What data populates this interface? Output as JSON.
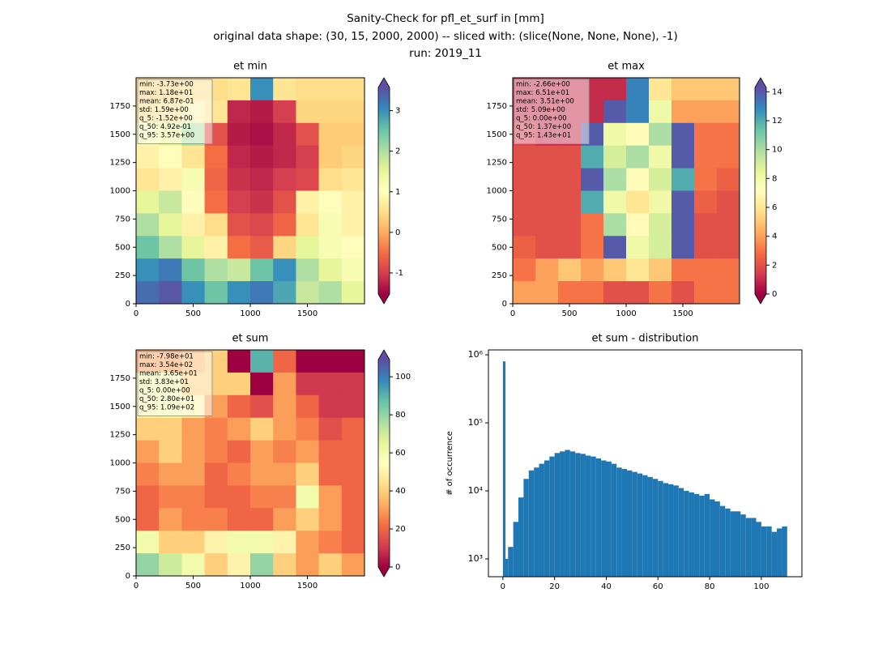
{
  "title": [
    "Sanity-Check for pfl_et_surf in [mm]",
    "original data shape: (30, 15, 2000, 2000) -- sliced with: (slice(None, None, None), -1)",
    "run: 2019_11"
  ],
  "chart_data": [
    {
      "type": "heatmap",
      "title": "et min",
      "xlim": [
        0,
        2000
      ],
      "ylim": [
        0,
        2000
      ],
      "xticks": [
        0,
        500,
        1000,
        1500
      ],
      "yticks": [
        0,
        250,
        500,
        750,
        1000,
        1250,
        1500,
        1750
      ],
      "clim": [
        -1.52,
        3.57
      ],
      "cticks": [
        -1,
        0,
        1,
        2,
        3
      ],
      "colormap": [
        "#9e0142",
        "#d53e4f",
        "#f46d43",
        "#fdae61",
        "#fee08b",
        "#ffffbf",
        "#e6f598",
        "#abdda4",
        "#66c2a5",
        "#3288bd",
        "#5e4fa2"
      ],
      "stats": [
        "min: -3.73e+00",
        "max: 1.18e+01",
        "mean: 6.87e-01",
        "std: 1.59e+00",
        "q_5: -1.52e+00",
        "q_50: 4.92e-01",
        "q_95: 3.57e+00"
      ],
      "z": [
        [
          0.4,
          0.4,
          0.5,
          0.5,
          0.6,
          3,
          0.6,
          0.5,
          0.5,
          0.5
        ],
        [
          0.5,
          0.6,
          0.8,
          0.6,
          -1.2,
          -1.3,
          -1.0,
          0.4,
          0.4,
          0.4
        ],
        [
          1.2,
          1.5,
          2.0,
          -0.8,
          -1.3,
          -1.4,
          -1.2,
          -0.8,
          0.3,
          0.3
        ],
        [
          0.8,
          1.0,
          0.6,
          -0.5,
          -1.2,
          -1.3,
          -1.2,
          -1.0,
          0.3,
          0.4
        ],
        [
          0.6,
          0.8,
          1.2,
          -0.6,
          -1.1,
          -1.2,
          -1.0,
          -0.9,
          0.5,
          0.6
        ],
        [
          1.5,
          1.8,
          1.0,
          -0.5,
          -1.0,
          -1.1,
          -0.8,
          0.8,
          1.0,
          0.8
        ],
        [
          2.0,
          1.5,
          0.8,
          0.5,
          -0.8,
          -0.9,
          -0.6,
          0.6,
          1.2,
          0.8
        ],
        [
          2.5,
          2.0,
          1.5,
          0.8,
          -0.5,
          -0.7,
          0.4,
          1.5,
          1.2,
          1.0
        ],
        [
          3.0,
          3.2,
          2.5,
          2.0,
          1.8,
          2.5,
          3.0,
          2.0,
          1.5,
          1.2
        ],
        [
          3.3,
          3.5,
          3.0,
          2.5,
          3.0,
          3.2,
          2.8,
          1.8,
          2.0,
          1.5
        ]
      ]
    },
    {
      "type": "heatmap",
      "title": "et max",
      "xlim": [
        0,
        2000
      ],
      "ylim": [
        0,
        2000
      ],
      "xticks": [
        0,
        500,
        1000,
        1500
      ],
      "yticks": [
        0,
        250,
        500,
        750,
        1000,
        1250,
        1500,
        1750
      ],
      "clim": [
        0,
        14.3
      ],
      "cticks": [
        0,
        2,
        4,
        6,
        8,
        10,
        12,
        14
      ],
      "colormap": [
        "#9e0142",
        "#d53e4f",
        "#f46d43",
        "#fdae61",
        "#fee08b",
        "#ffffbf",
        "#e6f598",
        "#abdda4",
        "#66c2a5",
        "#3288bd",
        "#5e4fa2"
      ],
      "stats": [
        "min: -2.66e+00",
        "max: 6.51e+01",
        "mean: 3.51e+00",
        "std: 5.09e+00",
        "q_5: 0.00e+00",
        "q_50: 1.37e+00",
        "q_95: 1.43e+01"
      ],
      "z": [
        [
          1,
          1,
          1,
          1,
          1,
          13,
          6,
          5,
          5,
          5
        ],
        [
          1,
          1,
          1,
          1,
          14,
          13,
          8,
          4,
          4,
          4
        ],
        [
          1.5,
          1,
          1,
          14,
          8,
          7,
          10,
          14,
          3,
          3
        ],
        [
          2,
          2,
          2,
          12,
          9,
          10,
          8,
          14,
          3,
          3
        ],
        [
          2,
          2,
          2,
          14,
          10,
          7,
          9,
          12,
          3,
          2.5
        ],
        [
          2,
          2,
          2,
          12,
          8,
          6,
          8,
          14,
          2.5,
          2
        ],
        [
          2,
          2,
          2,
          3,
          10,
          7,
          9,
          14,
          2,
          2
        ],
        [
          2.5,
          2,
          2,
          3,
          14,
          8,
          9,
          14,
          2,
          2
        ],
        [
          3,
          4,
          5,
          4,
          5,
          6,
          5,
          3,
          3,
          3
        ],
        [
          4,
          4,
          3,
          3,
          2,
          2,
          3,
          2,
          3,
          3
        ]
      ]
    },
    {
      "type": "heatmap",
      "title": "et sum",
      "xlim": [
        0,
        2000
      ],
      "ylim": [
        0,
        2000
      ],
      "xticks": [
        0,
        500,
        1000,
        1500
      ],
      "yticks": [
        0,
        250,
        500,
        750,
        1000,
        1250,
        1500,
        1750
      ],
      "clim": [
        0,
        109
      ],
      "cticks": [
        0,
        20,
        40,
        60,
        80,
        100
      ],
      "colormap": [
        "#9e0142",
        "#d53e4f",
        "#f46d43",
        "#fdae61",
        "#fee08b",
        "#ffffbf",
        "#e6f598",
        "#abdda4",
        "#66c2a5",
        "#3288bd",
        "#5e4fa2"
      ],
      "stats": [
        "min: -7.98e+01",
        "max: 3.54e+02",
        "mean: 3.65e+01",
        "std: 3.83e+01",
        "q_5: 0.00e+00",
        "q_50: 2.80e+01",
        "q_95: 1.09e+02"
      ],
      "z": [
        [
          30,
          30,
          35,
          40,
          0,
          90,
          20,
          0,
          0,
          0
        ],
        [
          60,
          60,
          40,
          40,
          40,
          0,
          30,
          10,
          10,
          10
        ],
        [
          50,
          60,
          50,
          30,
          20,
          15,
          30,
          20,
          10,
          10
        ],
        [
          40,
          40,
          30,
          25,
          30,
          40,
          30,
          25,
          15,
          20
        ],
        [
          30,
          40,
          30,
          25,
          20,
          30,
          25,
          30,
          20,
          20
        ],
        [
          25,
          30,
          30,
          20,
          25,
          30,
          30,
          40,
          20,
          20
        ],
        [
          20,
          25,
          25,
          20,
          20,
          25,
          25,
          60,
          30,
          20
        ],
        [
          20,
          30,
          25,
          25,
          20,
          20,
          30,
          40,
          30,
          20
        ],
        [
          60,
          40,
          40,
          50,
          60,
          60,
          50,
          30,
          25,
          20
        ],
        [
          80,
          70,
          60,
          40,
          50,
          80,
          40,
          30,
          40,
          30
        ]
      ]
    },
    {
      "type": "histogram",
      "title": "et sum - distribution",
      "ylabel": "# of occurrence",
      "color": "#1f77b4",
      "log_y": true,
      "xlim": [
        -5.6,
        115.7
      ],
      "ylim": [
        547,
        1180000
      ],
      "xticks": [
        0,
        20,
        40,
        60,
        80,
        100
      ],
      "yticks": [
        {
          "value": 1000,
          "label": "10³"
        },
        {
          "value": 10000,
          "label": "10⁴"
        },
        {
          "value": 100000,
          "label": "10⁵"
        },
        {
          "value": 1000000,
          "label": "10⁶"
        }
      ],
      "bins": [
        0,
        1,
        2,
        4,
        6,
        8,
        10,
        12,
        14,
        16,
        18,
        20,
        22,
        24,
        26,
        28,
        30,
        32,
        34,
        36,
        38,
        40,
        42,
        44,
        46,
        48,
        50,
        52,
        54,
        56,
        58,
        60,
        62,
        64,
        66,
        68,
        70,
        72,
        74,
        76,
        78,
        80,
        82,
        84,
        86,
        88,
        90,
        92,
        94,
        96,
        98,
        100,
        102,
        104,
        106,
        108,
        110
      ],
      "counts": [
        800000,
        1000,
        1500,
        3500,
        8000,
        15000,
        20000,
        22000,
        25000,
        28000,
        32000,
        36000,
        38000,
        40000,
        38000,
        36000,
        35000,
        33000,
        32000,
        30000,
        28000,
        27000,
        25000,
        22000,
        21000,
        20000,
        19000,
        18000,
        17000,
        16000,
        15000,
        14000,
        13000,
        12500,
        12000,
        11000,
        10000,
        9500,
        9000,
        8500,
        9000,
        7500,
        7000,
        6000,
        5500,
        5000,
        5000,
        4500,
        4000,
        4000,
        3500,
        3000,
        3000,
        2500,
        2800,
        3000
      ]
    }
  ]
}
